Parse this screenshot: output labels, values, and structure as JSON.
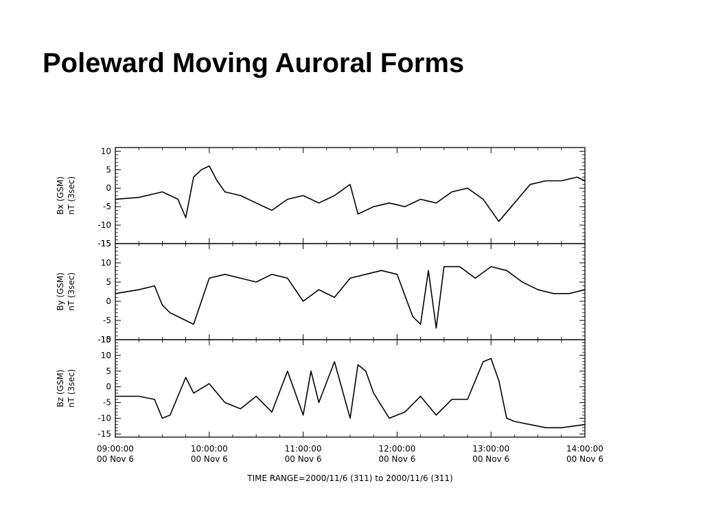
{
  "slide": {
    "title": "Poleward Moving Auroral Forms"
  },
  "chart_data": {
    "type": "line",
    "time_range_label": "TIME RANGE=2000/11/6 (311) to 2000/11/6 (311)",
    "x_range": [
      "09:00:00",
      "14:00:00"
    ],
    "x_ticks": [
      {
        "time": "09:00:00",
        "date": "00 Nov  6"
      },
      {
        "time": "10:00:00",
        "date": "00 Nov  6"
      },
      {
        "time": "11:00:00",
        "date": "00 Nov  6"
      },
      {
        "time": "12:00:00",
        "date": "00 Nov  6"
      },
      {
        "time": "13:00:00",
        "date": "00 Nov  6"
      },
      {
        "time": "14:00:00",
        "date": "00 Nov  6"
      }
    ],
    "panels": [
      {
        "ylabel": "Bx (GSM)",
        "yunits": "nT (3sec)",
        "ylim": [
          -15,
          11
        ],
        "yticks": [
          10,
          5,
          0,
          -5,
          -10,
          -15
        ],
        "x": [
          "09:00",
          "09:15",
          "09:30",
          "09:40",
          "09:45",
          "09:50",
          "09:55",
          "10:00",
          "10:05",
          "10:10",
          "10:20",
          "10:30",
          "10:40",
          "10:50",
          "11:00",
          "11:10",
          "11:20",
          "11:30",
          "11:35",
          "11:45",
          "11:55",
          "12:05",
          "12:15",
          "12:25",
          "12:35",
          "12:45",
          "12:55",
          "13:05",
          "13:15",
          "13:25",
          "13:35",
          "13:45",
          "13:55",
          "14:00"
        ],
        "values": [
          -3,
          -2.5,
          -1,
          -3,
          -8,
          3,
          5,
          6,
          2,
          -1,
          -2,
          -4,
          -6,
          -3,
          -2,
          -4,
          -2,
          1,
          -7,
          -5,
          -4,
          -5,
          -3,
          -4,
          -1,
          0,
          -3,
          -9,
          -4,
          1,
          2,
          2,
          3,
          2
        ]
      },
      {
        "ylabel": "By (GSM)",
        "yunits": "nT (3sec)",
        "ylim": [
          -10,
          15
        ],
        "yticks": [
          15,
          10,
          5,
          0,
          -5,
          -10
        ],
        "x": [
          "09:00",
          "09:15",
          "09:25",
          "09:30",
          "09:35",
          "09:40",
          "09:45",
          "09:50",
          "10:00",
          "10:10",
          "10:20",
          "10:30",
          "10:40",
          "10:50",
          "11:00",
          "11:10",
          "11:20",
          "11:30",
          "11:40",
          "11:50",
          "12:00",
          "12:10",
          "12:15",
          "12:20",
          "12:25",
          "12:30",
          "12:40",
          "12:50",
          "13:00",
          "13:10",
          "13:20",
          "13:30",
          "13:40",
          "13:50",
          "14:00"
        ],
        "values": [
          2,
          3,
          4,
          -1,
          -3,
          -4,
          -5,
          -6,
          6,
          7,
          6,
          5,
          7,
          6,
          0,
          3,
          1,
          6,
          7,
          8,
          7,
          -4,
          -6,
          8,
          -7,
          9,
          9,
          6,
          9,
          8,
          5,
          3,
          2,
          2,
          3
        ]
      },
      {
        "ylabel": "Bz (GSM)",
        "yunits": "nT (3sec)",
        "ylim": [
          -16,
          15
        ],
        "yticks": [
          15,
          10,
          5,
          0,
          -5,
          -10,
          -15
        ],
        "x": [
          "09:00",
          "09:15",
          "09:25",
          "09:30",
          "09:35",
          "09:45",
          "09:50",
          "10:00",
          "10:10",
          "10:20",
          "10:30",
          "10:40",
          "10:50",
          "11:00",
          "11:05",
          "11:10",
          "11:20",
          "11:30",
          "11:35",
          "11:40",
          "11:45",
          "11:55",
          "12:05",
          "12:15",
          "12:25",
          "12:35",
          "12:45",
          "12:55",
          "13:00",
          "13:05",
          "13:10",
          "13:15",
          "13:25",
          "13:35",
          "13:45",
          "14:00"
        ],
        "values": [
          -3,
          -3,
          -4,
          -10,
          -9,
          3,
          -2,
          1,
          -5,
          -7,
          -3,
          -8,
          5,
          -9,
          5,
          -5,
          8,
          -10,
          7,
          5,
          -2,
          -10,
          -8,
          -3,
          -9,
          -4,
          -4,
          8,
          9,
          2,
          -10,
          -11,
          -12,
          -13,
          -13,
          -12
        ]
      }
    ]
  }
}
